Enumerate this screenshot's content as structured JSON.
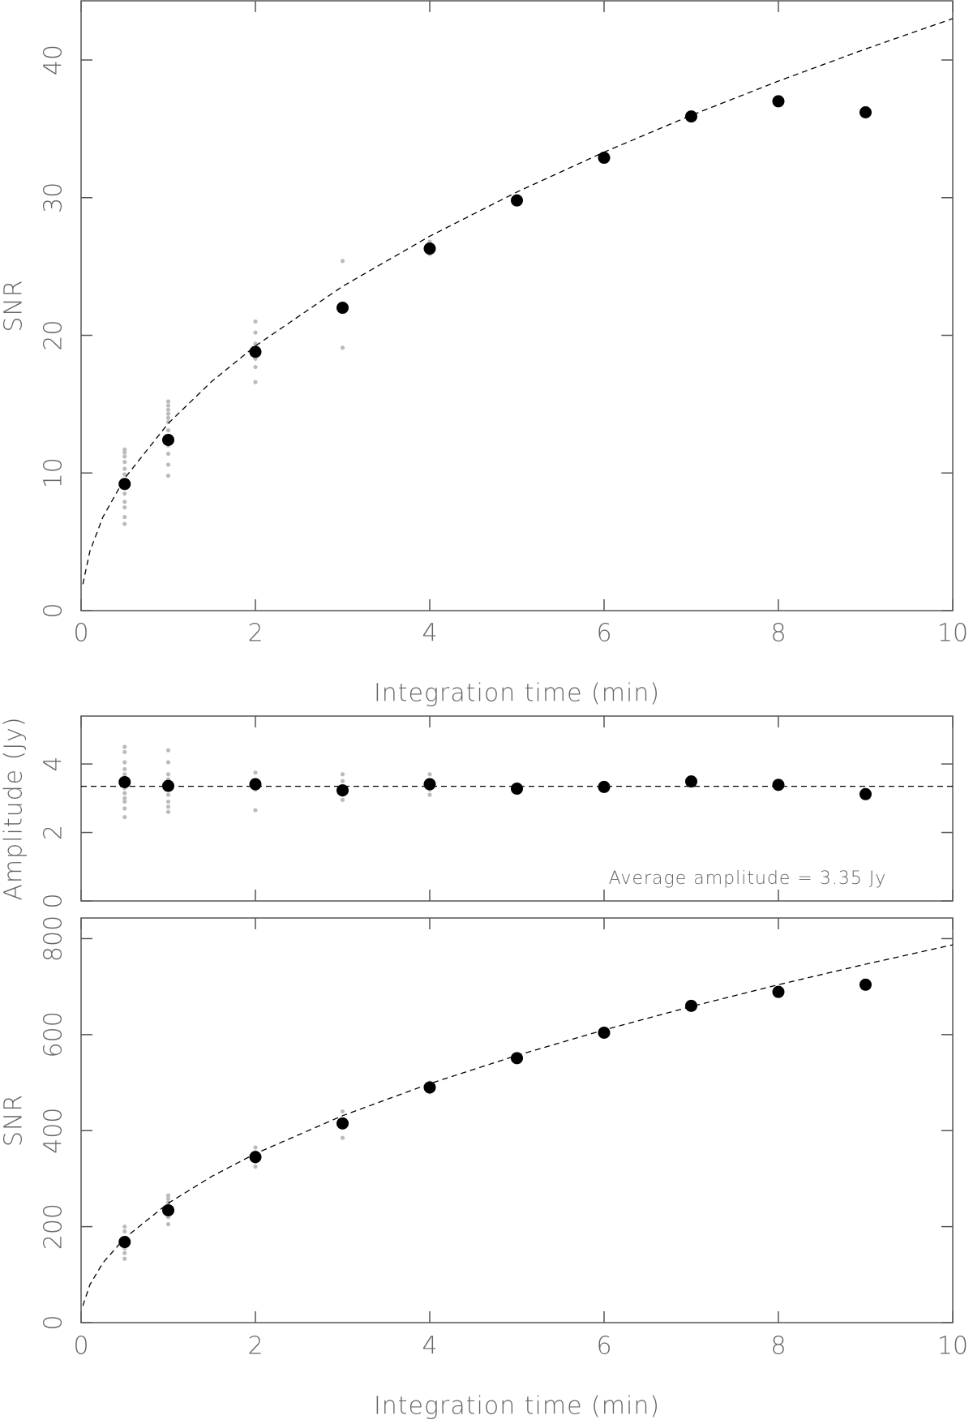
{
  "chart_data": [
    {
      "type": "scatter",
      "xlabel": "Integration time (min)",
      "ylabel": "SNR",
      "xlim": [
        0,
        10
      ],
      "ylim": [
        0,
        44.3
      ],
      "xticks": [
        0,
        2,
        4,
        6,
        8,
        10
      ],
      "yticks": [
        0,
        10,
        20,
        30,
        40
      ],
      "show_xtick_labels": true,
      "series": [
        {
          "color": "#bbbbbb",
          "marker": "small",
          "x": [
            0.5,
            0.5,
            0.5,
            0.5,
            0.5,
            0.5,
            0.5,
            0.5,
            0.5,
            0.5,
            0.5,
            0.5,
            1,
            1,
            1,
            1,
            1,
            1,
            1,
            1,
            1,
            1,
            1,
            2,
            2,
            2,
            2,
            2,
            2,
            3,
            3,
            4,
            4,
            4
          ],
          "values": [
            6.3,
            6.8,
            7.5,
            7.9,
            8.5,
            9.3,
            9.9,
            10.3,
            10.8,
            11.2,
            11.5,
            11.7,
            9.8,
            10.6,
            11.4,
            12.0,
            13.1,
            13.7,
            14.0,
            14.3,
            14.6,
            14.9,
            15.2,
            16.6,
            17.7,
            18.3,
            19.4,
            20.2,
            21.0,
            19.1,
            25.4,
            25.9,
            26.2,
            26.8
          ]
        },
        {
          "color": "#000000",
          "marker": "large",
          "x": [
            0.5,
            1,
            2,
            3,
            4,
            5,
            6,
            7,
            8,
            9
          ],
          "values": [
            9.2,
            12.4,
            18.8,
            22.0,
            26.3,
            29.8,
            32.9,
            35.9,
            37.0,
            36.2
          ]
        },
        {
          "color": "#000000",
          "line": "dashed",
          "x": [
            0.02,
            0.1,
            0.25,
            0.5,
            1,
            1.5,
            2,
            3,
            4,
            5,
            6,
            7,
            8,
            9,
            10
          ],
          "values": [
            1.92,
            4.3,
            6.8,
            9.62,
            13.6,
            16.66,
            19.23,
            23.56,
            27.2,
            30.41,
            33.31,
            35.98,
            38.47,
            40.8,
            43.01
          ]
        }
      ]
    },
    {
      "type": "scatter",
      "ylabel": "Amplitude (Jy)",
      "annotation": "Average amplitude = 3.35 Jy",
      "xlim": [
        0,
        10
      ],
      "ylim": [
        0,
        5.4
      ],
      "xticks": [
        0,
        2,
        4,
        6,
        8,
        10
      ],
      "yticks": [
        0,
        2,
        4
      ],
      "show_xtick_labels": false,
      "series": [
        {
          "color": "#bbbbbb",
          "marker": "small",
          "x": [
            0.5,
            0.5,
            0.5,
            0.5,
            0.5,
            0.5,
            0.5,
            0.5,
            0.5,
            0.5,
            0.5,
            0.5,
            1,
            1,
            1,
            1,
            1,
            1,
            1,
            1,
            2,
            2,
            2,
            2,
            3,
            3,
            3,
            3,
            4,
            4,
            4,
            4
          ],
          "values": [
            2.45,
            2.7,
            2.9,
            3.0,
            3.15,
            3.3,
            3.55,
            3.7,
            3.85,
            4.05,
            4.35,
            4.5,
            2.6,
            2.75,
            2.9,
            3.1,
            3.55,
            3.7,
            4.05,
            4.4,
            2.65,
            3.25,
            3.5,
            3.75,
            2.95,
            3.1,
            3.5,
            3.7,
            3.1,
            3.25,
            3.5,
            3.7
          ]
        },
        {
          "color": "#000000",
          "marker": "large",
          "x": [
            0.5,
            1,
            2,
            3,
            4,
            5,
            6,
            7,
            8,
            9
          ],
          "values": [
            3.47,
            3.36,
            3.41,
            3.23,
            3.41,
            3.28,
            3.33,
            3.49,
            3.39,
            3.12
          ]
        },
        {
          "color": "#000000",
          "line": "dashed",
          "x": [
            0,
            10
          ],
          "values": [
            3.35,
            3.35
          ]
        }
      ]
    },
    {
      "type": "scatter",
      "xlabel": "Integration time (min)",
      "ylabel": "SNR",
      "xlim": [
        0,
        10
      ],
      "ylim": [
        0,
        843
      ],
      "xticks": [
        0,
        2,
        4,
        6,
        8,
        10
      ],
      "yticks": [
        0,
        200,
        400,
        600,
        800
      ],
      "show_xtick_labels": true,
      "series": [
        {
          "color": "#bbbbbb",
          "marker": "small",
          "x": [
            0.5,
            0.5,
            0.5,
            0.5,
            0.5,
            0.5,
            1,
            1,
            1,
            1,
            1,
            1,
            2,
            2,
            2,
            2,
            3,
            3,
            4,
            4
          ],
          "values": [
            133,
            145,
            155,
            175,
            190,
            200,
            205,
            220,
            240,
            250,
            258,
            265,
            325,
            335,
            355,
            365,
            385,
            440,
            480,
            500
          ]
        },
        {
          "color": "#000000",
          "marker": "large",
          "x": [
            0.5,
            1,
            2,
            3,
            4,
            5,
            6,
            7,
            8,
            9
          ],
          "values": [
            168,
            234,
            345,
            415,
            490,
            551,
            604,
            660,
            689,
            704
          ]
        },
        {
          "color": "#000000",
          "line": "dashed",
          "x": [
            0.02,
            0.1,
            0.25,
            0.5,
            1,
            1.5,
            2,
            3,
            4,
            5,
            6,
            7,
            8,
            9,
            10
          ],
          "values": [
            35.2,
            78.7,
            124.5,
            176.0,
            248.9,
            304.8,
            352.0,
            431.1,
            497.8,
            556.6,
            609.7,
            658.5,
            704.0,
            746.7,
            787.1
          ]
        }
      ]
    }
  ]
}
